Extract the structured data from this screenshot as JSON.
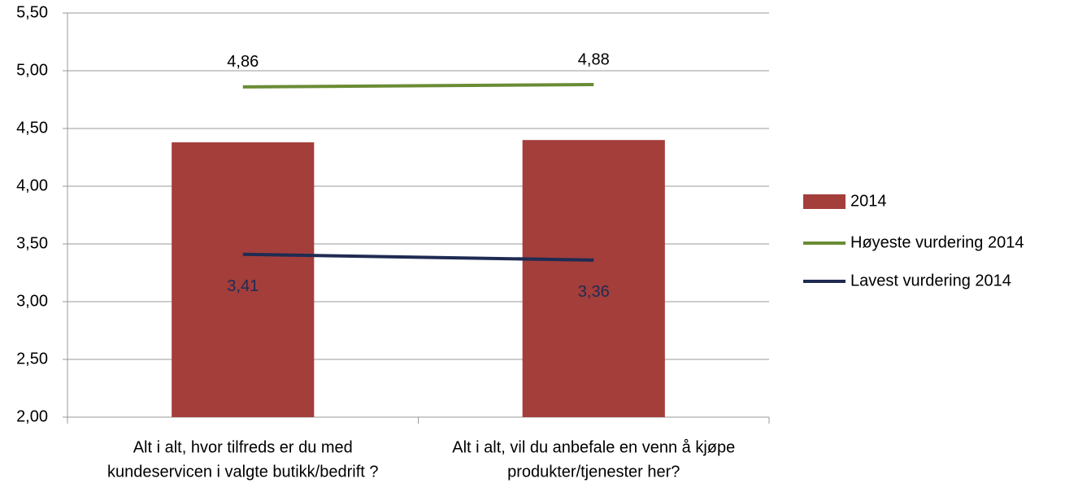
{
  "chart_data": {
    "type": "bar-line",
    "categories": [
      [
        "Alt i alt, hvor tilfreds er du med",
        "kundeservicen i valgte butikk/bedrift ?"
      ],
      [
        "Alt i alt, vil du anbefale en venn å kjøpe",
        "produkter/tjenester her?"
      ]
    ],
    "series": [
      {
        "name": "2014",
        "type": "bar",
        "color": "#a33e3b",
        "values": [
          4.38,
          4.4
        ]
      },
      {
        "name": "Høyeste vurdering 2014",
        "type": "line",
        "color": "#6a8c35",
        "values": [
          4.86,
          4.88
        ],
        "value_labels": [
          "4,86",
          "4,88"
        ]
      },
      {
        "name": "Lavest vurdering 2014",
        "type": "line",
        "color": "#1f2b52",
        "values": [
          3.41,
          3.36
        ],
        "value_labels": [
          "3,41",
          "3,36"
        ]
      }
    ],
    "ylim": [
      2.0,
      5.5
    ],
    "yticks": [
      {
        "value": 2.0,
        "label": "2,00"
      },
      {
        "value": 2.5,
        "label": "2,50"
      },
      {
        "value": 3.0,
        "label": "3,00"
      },
      {
        "value": 3.5,
        "label": "3,50"
      },
      {
        "value": 4.0,
        "label": "4,00"
      },
      {
        "value": 4.5,
        "label": "4,50"
      },
      {
        "value": 5.0,
        "label": "5,00"
      },
      {
        "value": 5.5,
        "label": "5,50"
      }
    ],
    "grid": true,
    "legend": "right"
  }
}
